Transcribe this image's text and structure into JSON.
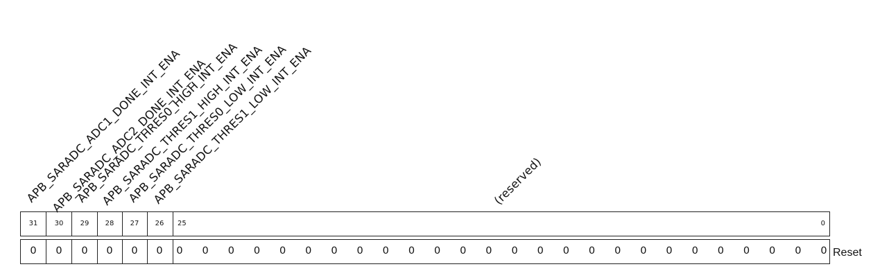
{
  "fields": [
    {
      "label": "APB_SARADC_ADC1_DONE_INT_ENA",
      "bits": "31"
    },
    {
      "label": "APB_SARADC_ADC2_DONE_INT_ENA",
      "bits": "30"
    },
    {
      "label": "APB_SARADC_THRES0_HIGH_INT_ENA",
      "bits": "29"
    },
    {
      "label": "APB_SARADC_THRES1_HIGH_INT_ENA",
      "bits": "28"
    },
    {
      "label": "APB_SARADC_THRES0_LOW_INT_ENA",
      "bits": "27"
    },
    {
      "label": "APB_SARADC_THRES1_LOW_INT_ENA",
      "bits": "26"
    },
    {
      "label": "(reserved)",
      "bits_high": "25",
      "bits_low": "0"
    }
  ],
  "reset_values": [
    "0",
    "0",
    "0",
    "0",
    "0",
    "0",
    "0",
    "0",
    "0",
    "0",
    "0",
    "0",
    "0",
    "0",
    "0",
    "0",
    "0",
    "0",
    "0",
    "0",
    "0",
    "0",
    "0",
    "0",
    "0",
    "0",
    "0",
    "0",
    "0",
    "0",
    "0",
    "0"
  ],
  "reset_label": "Reset"
}
